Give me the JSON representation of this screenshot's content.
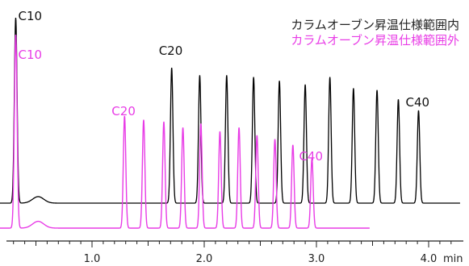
{
  "chart_data": {
    "type": "line",
    "xlabel": "min",
    "xlim": [
      0.0,
      4.3
    ],
    "x_ticks": [
      1.0,
      2.0,
      3.0,
      4.0
    ],
    "x_tick_labels": [
      "1.0",
      "2.0",
      "3.0",
      "4.0"
    ],
    "grid": false,
    "legend_position": "top-right",
    "series": [
      {
        "name": "カラムオーブン昇温仕様範囲内",
        "color": "#000000",
        "peaks": [
          {
            "label": "C10",
            "rt": 0.32,
            "height": 1.0
          },
          {
            "label": "",
            "rt": 1.71,
            "height": 0.73
          },
          {
            "label": "",
            "rt": 1.96,
            "height": 0.69
          },
          {
            "label": "",
            "rt": 2.2,
            "height": 0.69
          },
          {
            "label": "",
            "rt": 2.44,
            "height": 0.68
          },
          {
            "label": "",
            "rt": 2.67,
            "height": 0.66
          },
          {
            "label": "",
            "rt": 2.9,
            "height": 0.64
          },
          {
            "label": "",
            "rt": 3.12,
            "height": 0.68
          },
          {
            "label": "",
            "rt": 3.33,
            "height": 0.62
          },
          {
            "label": "",
            "rt": 3.54,
            "height": 0.61
          },
          {
            "label": "",
            "rt": 3.73,
            "height": 0.56
          },
          {
            "label": "",
            "rt": 3.91,
            "height": 0.5
          }
        ],
        "peak_labels": [
          {
            "text": "C10",
            "rt": 0.32
          },
          {
            "text": "C20",
            "rt": 1.71
          },
          {
            "text": "C40",
            "rt": 3.91
          }
        ]
      },
      {
        "name": "カラムオーブン昇温仕様範囲外",
        "color": "#e83ce6",
        "peaks": [
          {
            "label": "C10",
            "rt": 0.32,
            "height": 1.0
          },
          {
            "label": "",
            "rt": 1.29,
            "height": 0.58
          },
          {
            "label": "",
            "rt": 1.46,
            "height": 0.56
          },
          {
            "label": "",
            "rt": 1.64,
            "height": 0.55
          },
          {
            "label": "",
            "rt": 1.81,
            "height": 0.52
          },
          {
            "label": "",
            "rt": 1.97,
            "height": 0.54
          },
          {
            "label": "",
            "rt": 2.14,
            "height": 0.5
          },
          {
            "label": "",
            "rt": 2.31,
            "height": 0.52
          },
          {
            "label": "",
            "rt": 2.47,
            "height": 0.48
          },
          {
            "label": "",
            "rt": 2.63,
            "height": 0.46
          },
          {
            "label": "",
            "rt": 2.79,
            "height": 0.43
          },
          {
            "label": "",
            "rt": 2.96,
            "height": 0.36
          }
        ],
        "peak_labels": [
          {
            "text": "C10",
            "rt": 0.32
          },
          {
            "text": "C20",
            "rt": 1.29
          },
          {
            "text": "C40",
            "rt": 2.96
          }
        ]
      }
    ]
  }
}
